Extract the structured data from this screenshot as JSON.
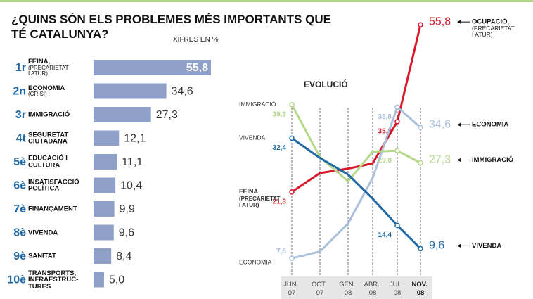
{
  "chart_data": [
    {
      "type": "bar",
      "title": "¿QUINS SÓN ELS PROBLEMES MÉS IMPORTANTS QUE TÉ CATALUNYA?",
      "subtitle": "XIFRES EN %",
      "ranks": [
        "1r",
        "2n",
        "3r",
        "4t",
        "5è",
        "6è",
        "7è",
        "8è",
        "9è",
        "10è"
      ],
      "categories": [
        "FEINA,",
        "ECONOMIA",
        "IMMIGRACIÓ",
        "SEGURETAT CIUTADANA",
        "EDUCACIÓ I CULTURA",
        "INSATISFACCIÓ POLÍTICA",
        "FINANÇAMENT",
        "VIVENDA",
        "SANITAT",
        "TRANSPORTS, INFRAESTRUC-TURES"
      ],
      "category_notes": [
        "(PRECARIETAT I ATUR)",
        "(CRISI)",
        null,
        null,
        null,
        null,
        null,
        null,
        null,
        null
      ],
      "values": [
        55.8,
        34.6,
        27.3,
        12.1,
        11.1,
        10.4,
        9.9,
        9.6,
        8.4,
        5.0
      ],
      "value_labels": [
        "55,8",
        "34,6",
        "27,3",
        "12,1",
        "11,1",
        "10,4",
        "9,9",
        "9,6",
        "8,4",
        "5,0"
      ],
      "color": "#8e9fc8"
    },
    {
      "type": "line",
      "title": "EVOLUCIÓ",
      "categories": [
        "JUN. 07",
        "OCT. 07",
        "GEN. 08",
        "ABR. 08",
        "JUL. 08",
        "NOV. 08"
      ],
      "ylim": [
        4,
        58
      ],
      "series": [
        {
          "name": "OCUPACIÓ,",
          "name_note": "(PRECARIETAT I ATUR)",
          "start_label": "FEINA,",
          "start_note": "(PRECARIETAT I ATUR)",
          "color": "#d7192a",
          "values": [
            21.3,
            25.2,
            26.1,
            27.2,
            35.8,
            55.8
          ],
          "value_labels": [
            "21,3",
            null,
            null,
            null,
            "35,8",
            "55,8"
          ]
        },
        {
          "name": "ECONOMIA",
          "start_label": "ECONOMIA",
          "color": "#a9bfdc",
          "values": [
            7.6,
            9.0,
            14.8,
            24.2,
            38.8,
            34.6
          ],
          "value_labels": [
            "7,6",
            null,
            null,
            null,
            "38,8",
            "34,6"
          ]
        },
        {
          "name": "IMMIGRACIÓ",
          "start_label": "IMMIGRACIÓ",
          "color": "#b5d88a",
          "values": [
            39.3,
            28.5,
            23.5,
            29.6,
            29.8,
            27.3
          ],
          "value_labels": [
            "39,3",
            null,
            null,
            null,
            "29,8",
            "27,3"
          ]
        },
        {
          "name": "VIVENDA",
          "start_label": "VIVENDA",
          "color": "#1f6aa5",
          "values": [
            32.4,
            28.3,
            24.9,
            19.9,
            14.4,
            9.6
          ],
          "value_labels": [
            "32,4",
            null,
            null,
            null,
            "14,4",
            "9,6"
          ]
        }
      ]
    }
  ]
}
